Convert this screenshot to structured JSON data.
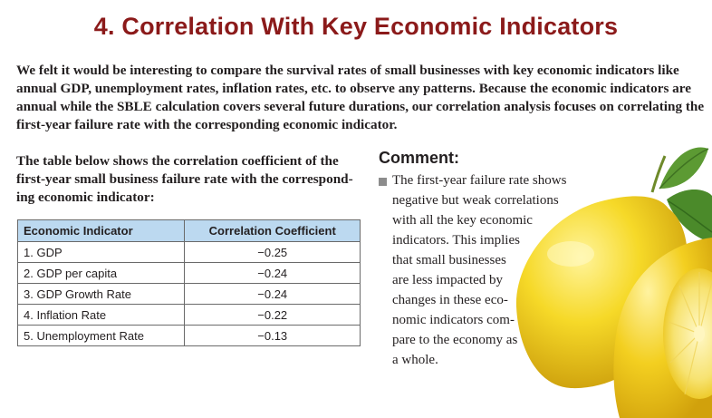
{
  "title": "4. Correlation With Key Economic Indicators",
  "intro": "We felt it would be interesting to compare the survival rates of small businesses with key economic indicators like annual GDP, unemployment rates, inflation rates, etc. to observe any patterns. Because the economic indicators are annual while the SBLE calculation covers several future durations, our correlation analysis focuses on correlating the first-year failure rate with the corresponding economic indicator.",
  "table_intro": "The table below shows the correlation coefficient of the first-year small business failure rate with the correspond-ing economic indicator:",
  "table": {
    "headers": [
      "Economic Indicator",
      "Correlation Coefficient"
    ],
    "rows": [
      [
        "1. GDP",
        "−0.25"
      ],
      [
        "2. GDP per capita",
        "−0.24"
      ],
      [
        "3. GDP Growth Rate",
        "−0.24"
      ],
      [
        "4. Inflation Rate",
        "−0.22"
      ],
      [
        "5. Unemployment Rate",
        "−0.13"
      ]
    ]
  },
  "comment": {
    "heading": "Comment:",
    "lines": [
      "The first-year failure rate shows",
      "negative but weak correlations",
      "with all the key economic",
      "indicators. This implies",
      "that small businesses",
      "are less impacted by",
      "changes in these eco-",
      "nomic indicators com-",
      "pare to the economy as",
      "a whole."
    ]
  },
  "colors": {
    "title": "#8b1a1a",
    "table_header_bg": "#bcd9f0",
    "lemon": "#f3d21c",
    "leaf": "#4f8a2c"
  },
  "icons": {
    "bullet": "square-bullet-icon",
    "illustration": "lemons-image"
  }
}
